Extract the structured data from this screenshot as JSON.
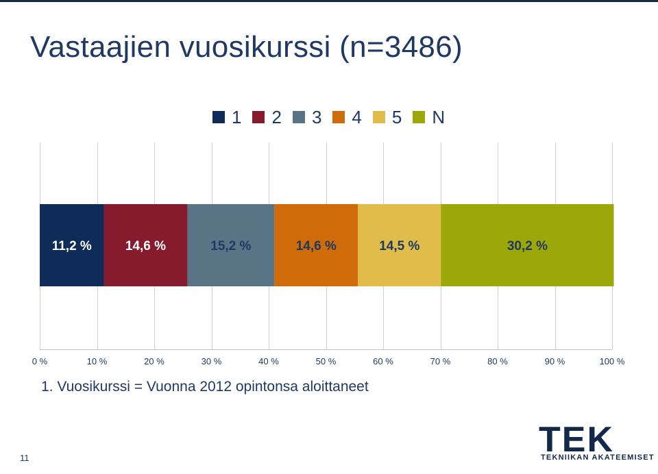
{
  "slide": {
    "title": "Vastaajien vuosikurssi (n=3486)",
    "footnote": "1. Vuosikurssi = Vuonna 2012 opintonsa aloittaneet",
    "page_number": "11"
  },
  "logo": {
    "text": "TEK",
    "subtitle": "TEKNIIKAN AKATEEMISET",
    "color": "#13294b"
  },
  "chart_data": {
    "type": "bar",
    "orientation": "horizontal",
    "stacked": true,
    "percent_scale": true,
    "series": [
      {
        "name": "1",
        "values": [
          11.2
        ],
        "label": "11,2 %",
        "color": "#0f2b57"
      },
      {
        "name": "2",
        "values": [
          14.6
        ],
        "label": "14,6 %",
        "color": "#861b2e"
      },
      {
        "name": "3",
        "values": [
          15.2
        ],
        "label": "15,2 %",
        "color": "#587485"
      },
      {
        "name": "4",
        "values": [
          14.6
        ],
        "label": "14,6 %",
        "color": "#d06b0a"
      },
      {
        "name": "5",
        "values": [
          14.5
        ],
        "label": "14,5 %",
        "color": "#e0bc4b"
      },
      {
        "name": "N",
        "values": [
          30.2
        ],
        "label": "30,2 %",
        "color": "#9ca70a"
      }
    ],
    "x_ticks": [
      "0 %",
      "10 %",
      "20 %",
      "30 %",
      "40 %",
      "50 %",
      "60 %",
      "70 %",
      "80 %",
      "90 %",
      "100 %"
    ],
    "xlim": [
      0,
      100
    ],
    "grid": true,
    "legend_position": "top"
  }
}
